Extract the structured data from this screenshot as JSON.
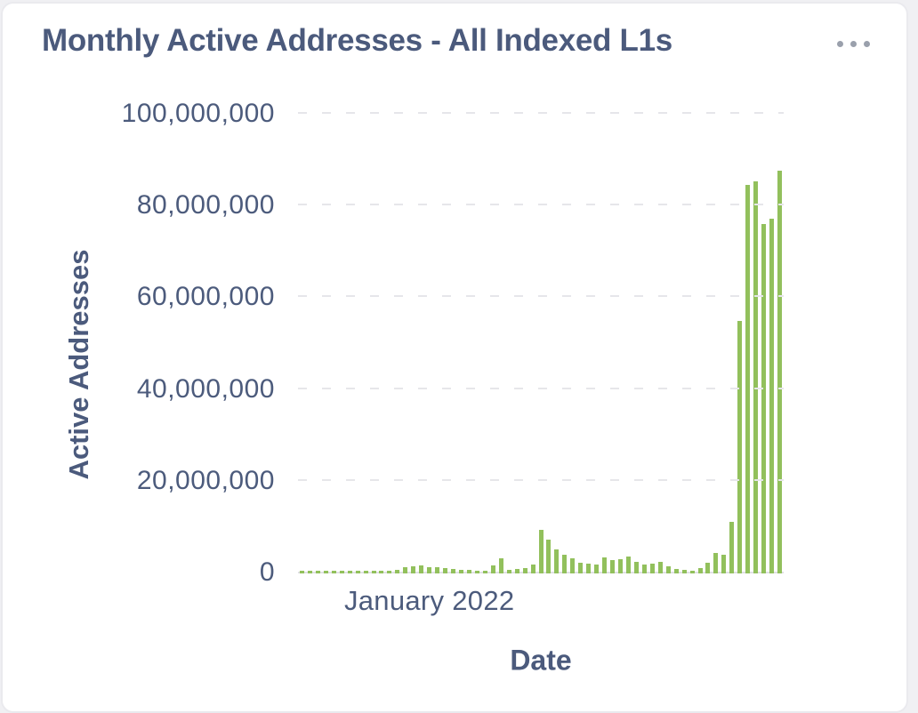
{
  "card": {
    "title": "Monthly Active Addresses - All Indexed L1s",
    "menu_icon": "ellipsis-horizontal-icon"
  },
  "colors": {
    "title_text": "#4b5a7c",
    "axis_text": "#4c5b7c",
    "bar": "#92c05c",
    "gridline": "#e6e6ea",
    "axis_line": "#e0e0e4",
    "menu_dots": "#9aa0ac",
    "card_background": "#ffffff",
    "card_border": "#eaeaee",
    "page_background": "#f0f0f3"
  },
  "chart_data": {
    "type": "bar",
    "title": "Monthly Active Addresses - All Indexed L1s",
    "xlabel": "Date",
    "ylabel": "Active Addresses",
    "legend": "none",
    "grid": "horizontal-dashed",
    "bar_interval": "monthly",
    "ylim": [
      0,
      100000000
    ],
    "yticks": [
      {
        "value": 0,
        "label": "0"
      },
      {
        "value": 20000000,
        "label": "20,000,000"
      },
      {
        "value": 40000000,
        "label": "40,000,000"
      },
      {
        "value": 60000000,
        "label": "60,000,000"
      },
      {
        "value": 80000000,
        "label": "80,000,000"
      },
      {
        "value": 100000000,
        "label": "100,000,000"
      }
    ],
    "xticks": [
      {
        "label": "January 2022",
        "bar_index": 16
      }
    ],
    "values": [
      500000,
      500000,
      500000,
      500000,
      500000,
      500000,
      500000,
      500000,
      500000,
      500000,
      500000,
      600000,
      800000,
      1300000,
      1600000,
      1800000,
      1400000,
      1300000,
      1200000,
      1000000,
      800000,
      800000,
      650000,
      500000,
      1800000,
      3200000,
      700000,
      1000000,
      1200000,
      2000000,
      9400000,
      7400000,
      5300000,
      4000000,
      3200000,
      2400000,
      2100000,
      1900000,
      3400000,
      2900000,
      3100000,
      3600000,
      2500000,
      1900000,
      2100000,
      2500000,
      1600000,
      1000000,
      700000,
      650000,
      1200000,
      2400000,
      4400000,
      4000000,
      11200000,
      55000000,
      84600000,
      85400000,
      76100000,
      77400000,
      87800000
    ]
  }
}
